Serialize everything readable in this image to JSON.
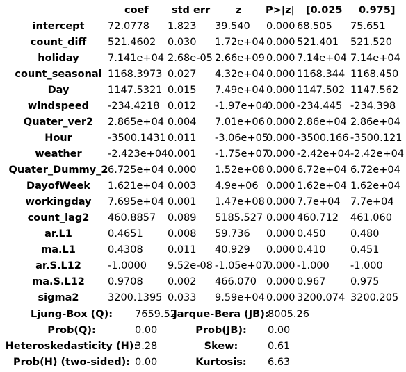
{
  "headers": [
    "coef",
    "std err",
    "z",
    "P>|z|",
    "[0.025",
    "0.975]"
  ],
  "rows": [
    {
      "name": "intercept",
      "coef": "72.0778",
      "std_err": "1.823",
      "z": "39.540",
      "p": "0.000",
      "lo": "68.505",
      "hi": "75.651"
    },
    {
      "name": "count_diff",
      "coef": "521.4602",
      "std_err": "0.030",
      "z": "1.72e+04",
      "p": "0.000",
      "lo": "521.401",
      "hi": "521.520"
    },
    {
      "name": "holiday",
      "coef": "7.141e+04",
      "std_err": "2.68e-05",
      "z": "2.66e+09",
      "p": "0.000",
      "lo": "7.14e+04",
      "hi": "7.14e+04"
    },
    {
      "name": "count_seasonal",
      "coef": "1168.3973",
      "std_err": "0.027",
      "z": "4.32e+04",
      "p": "0.000",
      "lo": "1168.344",
      "hi": "1168.450"
    },
    {
      "name": "Day",
      "coef": "1147.5321",
      "std_err": "0.015",
      "z": "7.49e+04",
      "p": "0.000",
      "lo": "1147.502",
      "hi": "1147.562"
    },
    {
      "name": "windspeed",
      "coef": "-234.4218",
      "std_err": "0.012",
      "z": "-1.97e+04",
      "p": "0.000",
      "lo": "-234.445",
      "hi": "-234.398"
    },
    {
      "name": "Quater_ver2",
      "coef": "2.865e+04",
      "std_err": "0.004",
      "z": "7.01e+06",
      "p": "0.000",
      "lo": "2.86e+04",
      "hi": "2.86e+04"
    },
    {
      "name": "Hour",
      "coef": "-3500.1431",
      "std_err": "0.011",
      "z": "-3.06e+05",
      "p": "0.000",
      "lo": "-3500.166",
      "hi": "-3500.121"
    },
    {
      "name": "weather",
      "coef": "-2.423e+04",
      "std_err": "0.001",
      "z": "-1.75e+07",
      "p": "0.000",
      "lo": "-2.42e+04",
      "hi": "-2.42e+04"
    },
    {
      "name": "Quater_Dummy_2",
      "coef": "6.725e+04",
      "std_err": "0.000",
      "z": "1.52e+08",
      "p": "0.000",
      "lo": "6.72e+04",
      "hi": "6.72e+04"
    },
    {
      "name": "DayofWeek",
      "coef": "1.621e+04",
      "std_err": "0.003",
      "z": "4.9e+06",
      "p": "0.000",
      "lo": "1.62e+04",
      "hi": "1.62e+04"
    },
    {
      "name": "workingday",
      "coef": "7.695e+04",
      "std_err": "0.001",
      "z": "1.47e+08",
      "p": "0.000",
      "lo": "7.7e+04",
      "hi": "7.7e+04"
    },
    {
      "name": "count_lag2",
      "coef": "460.8857",
      "std_err": "0.089",
      "z": "5185.527",
      "p": "0.000",
      "lo": "460.712",
      "hi": "461.060"
    },
    {
      "name": "ar.L1",
      "coef": "0.4651",
      "std_err": "0.008",
      "z": "59.736",
      "p": "0.000",
      "lo": "0.450",
      "hi": "0.480"
    },
    {
      "name": "ma.L1",
      "coef": "0.4308",
      "std_err": "0.011",
      "z": "40.929",
      "p": "0.000",
      "lo": "0.410",
      "hi": "0.451"
    },
    {
      "name": "ar.S.L12",
      "coef": "-1.0000",
      "std_err": "9.52e-08",
      "z": "-1.05e+07",
      "p": "0.000",
      "lo": "-1.000",
      "hi": "-1.000"
    },
    {
      "name": "ma.S.L12",
      "coef": "0.9708",
      "std_err": "0.002",
      "z": "466.070",
      "p": "0.000",
      "lo": "0.967",
      "hi": "0.975"
    },
    {
      "name": "sigma2",
      "coef": "3200.1395",
      "std_err": "0.033",
      "z": "9.59e+04",
      "p": "0.000",
      "lo": "3200.074",
      "hi": "3200.205"
    }
  ],
  "diagnostics": [
    {
      "l1": "Ljung-Box (Q):",
      "v1": "7659.52",
      "l2": "Jarque-Bera (JB):",
      "v2": "8005.26"
    },
    {
      "l1": "Prob(Q):",
      "v1": "0.00",
      "l2": "Prob(JB):",
      "v2": "0.00"
    },
    {
      "l1": "Heteroskedasticity (H):",
      "v1": "3.28",
      "l2": "Skew:",
      "v2": "0.61"
    },
    {
      "l1": "Prob(H) (two-sided):",
      "v1": "0.00",
      "l2": "Kurtosis:",
      "v2": "6.63"
    }
  ]
}
